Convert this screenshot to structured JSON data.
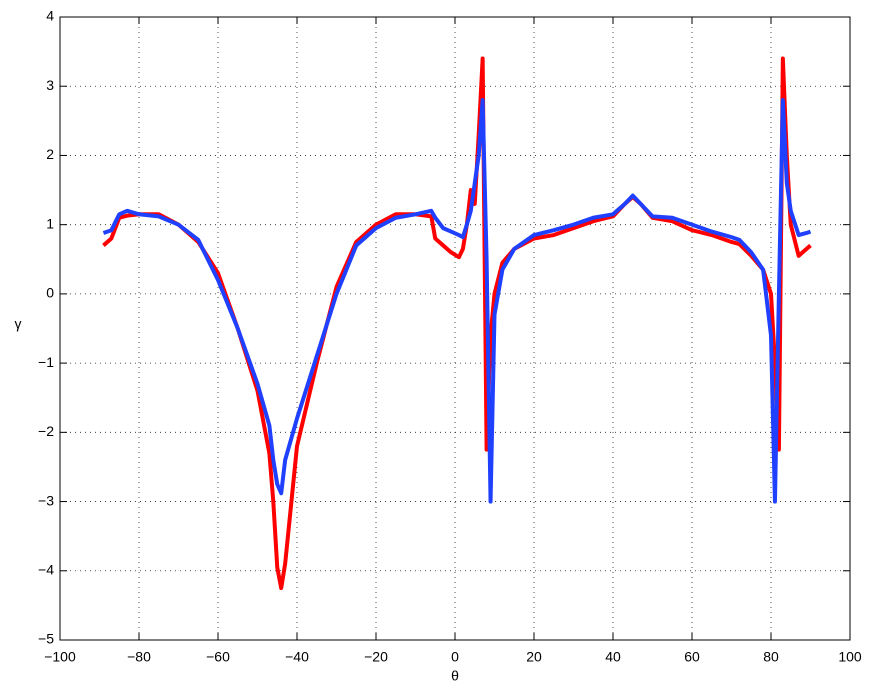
{
  "chart_data": {
    "type": "line",
    "x_label": "θ",
    "y_label": "γ",
    "x": [
      -89,
      -87,
      -85,
      -83,
      -80,
      -75,
      -70,
      -65,
      -60,
      -55,
      -50,
      -47,
      -46,
      -45,
      -44,
      -43,
      -40,
      -35,
      -30,
      -25,
      -20,
      -15,
      -10,
      -6,
      -5,
      -3,
      -1,
      1,
      2,
      3,
      4,
      5,
      6,
      7,
      8,
      9,
      10,
      12,
      15,
      20,
      25,
      30,
      35,
      40,
      43,
      45,
      47,
      50,
      55,
      60,
      65,
      70,
      72,
      75,
      78,
      80,
      81,
      82,
      83,
      84,
      85,
      87,
      89,
      90
    ],
    "series": [
      {
        "color": "#ff0000",
        "values": [
          0.7,
          0.8,
          1.1,
          1.13,
          1.15,
          1.15,
          1.0,
          0.75,
          0.3,
          -0.5,
          -1.4,
          -2.3,
          -3.0,
          -3.95,
          -4.25,
          -3.9,
          -2.2,
          -1.0,
          0.1,
          0.75,
          1.0,
          1.15,
          1.15,
          1.12,
          0.8,
          0.7,
          0.6,
          0.53,
          0.65,
          1.0,
          1.5,
          1.3,
          2.3,
          3.4,
          -2.25,
          -0.6,
          0.0,
          0.45,
          0.65,
          0.8,
          0.85,
          0.95,
          1.05,
          1.12,
          1.3,
          1.4,
          1.3,
          1.1,
          1.05,
          0.92,
          0.85,
          0.75,
          0.72,
          0.55,
          0.35,
          0.0,
          -1.0,
          -2.25,
          3.4,
          2.0,
          1.0,
          0.55,
          0.65,
          0.7
        ]
      },
      {
        "color": "#2040ff",
        "values": [
          0.88,
          0.92,
          1.15,
          1.2,
          1.15,
          1.12,
          1.0,
          0.78,
          0.2,
          -0.5,
          -1.3,
          -1.9,
          -2.4,
          -2.75,
          -2.88,
          -2.4,
          -1.8,
          -0.9,
          0.0,
          0.7,
          0.95,
          1.1,
          1.15,
          1.2,
          1.1,
          0.95,
          0.9,
          0.85,
          0.82,
          1.0,
          1.2,
          1.6,
          2.0,
          2.8,
          0.5,
          -3.0,
          -0.3,
          0.35,
          0.65,
          0.85,
          0.92,
          1.0,
          1.1,
          1.15,
          1.3,
          1.42,
          1.3,
          1.12,
          1.1,
          1.0,
          0.9,
          0.82,
          0.78,
          0.6,
          0.35,
          -0.6,
          -3.0,
          0.0,
          2.8,
          1.6,
          1.2,
          0.85,
          0.88,
          0.9
        ]
      }
    ],
    "xlim": [
      -100,
      100
    ],
    "xticks": [
      {
        "value": -100,
        "label": "−100"
      },
      {
        "value": -80,
        "label": "−80"
      },
      {
        "value": -60,
        "label": "−60"
      },
      {
        "value": -40,
        "label": "−40"
      },
      {
        "value": -20,
        "label": "−20"
      },
      0,
      20,
      40,
      60,
      80,
      100
    ],
    "ylim": [
      -5,
      4
    ],
    "yticks": [
      {
        "value": -5,
        "label": "−5"
      },
      {
        "value": -4,
        "label": "−4"
      },
      {
        "value": -3,
        "label": "−3"
      },
      {
        "value": -2,
        "label": "−2"
      },
      {
        "value": -1,
        "label": "−1"
      },
      0,
      1,
      2,
      3,
      4
    ],
    "grid": true
  }
}
